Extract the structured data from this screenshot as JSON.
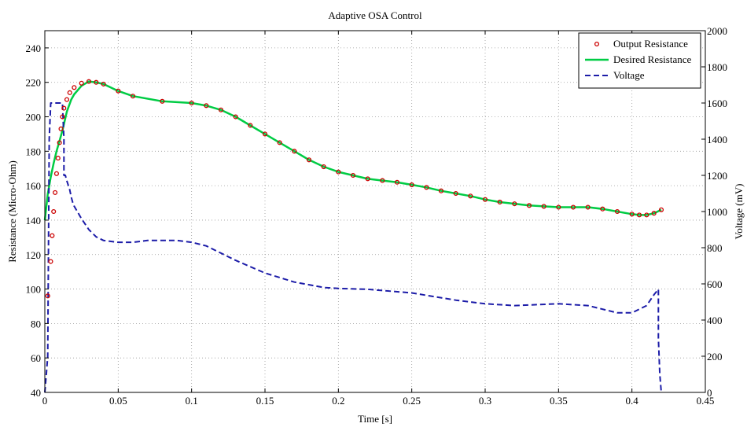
{
  "chart_data": {
    "type": "line",
    "title": "Adaptive OSA Control",
    "xlabel": "Time [s]",
    "ylabel": "Resistance (Micro-Ohm)",
    "y2label": "Voltage (mV)",
    "xlim": [
      0,
      0.45
    ],
    "ylim": [
      40,
      250
    ],
    "y2lim": [
      0,
      2000
    ],
    "xticks": [
      0,
      0.05,
      0.1,
      0.15,
      0.2,
      0.25,
      0.3,
      0.35,
      0.4,
      0.45
    ],
    "xtick_labels": [
      "0",
      "0.05",
      "0.1",
      "0.15",
      "0.2",
      "0.25",
      "0.3",
      "0.35",
      "0.4",
      "0.45"
    ],
    "yticks": [
      40,
      60,
      80,
      100,
      120,
      140,
      160,
      180,
      200,
      220,
      240
    ],
    "y2ticks": [
      0,
      200,
      400,
      600,
      800,
      1000,
      1200,
      1400,
      1600,
      1800,
      2000
    ],
    "grid": true,
    "legend_position": "top-right",
    "series": [
      {
        "name": "Output Resistance",
        "axis": "left",
        "style": "markers",
        "color": "#cc0000",
        "x": [
          0.002,
          0.004,
          0.005,
          0.006,
          0.007,
          0.008,
          0.009,
          0.01,
          0.011,
          0.012,
          0.013,
          0.015,
          0.017,
          0.02,
          0.025,
          0.03,
          0.035,
          0.04,
          0.05,
          0.06,
          0.08,
          0.1,
          0.11,
          0.12,
          0.13,
          0.14,
          0.15,
          0.16,
          0.17,
          0.18,
          0.19,
          0.2,
          0.21,
          0.22,
          0.23,
          0.24,
          0.25,
          0.26,
          0.27,
          0.28,
          0.29,
          0.3,
          0.31,
          0.32,
          0.33,
          0.34,
          0.35,
          0.36,
          0.37,
          0.38,
          0.39,
          0.4,
          0.405,
          0.41,
          0.415,
          0.42
        ],
        "y": [
          96,
          116,
          131,
          145,
          156,
          167,
          176,
          185,
          193,
          200,
          205,
          210,
          214,
          217,
          219.5,
          220.5,
          220,
          219,
          215,
          212,
          209,
          208,
          206.5,
          204,
          200,
          195,
          190,
          185,
          180,
          175,
          171,
          168,
          166,
          164,
          163,
          162,
          160.5,
          159,
          157,
          155.5,
          154,
          152,
          150.5,
          149.5,
          148.5,
          148,
          147.5,
          147.5,
          147.5,
          146.5,
          145,
          143.5,
          143,
          143,
          144,
          146
        ]
      },
      {
        "name": "Desired Resistance",
        "axis": "left",
        "style": "line",
        "color": "#00cc44",
        "x": [
          0,
          0.002,
          0.004,
          0.006,
          0.008,
          0.01,
          0.012,
          0.015,
          0.018,
          0.02,
          0.025,
          0.03,
          0.035,
          0.04,
          0.05,
          0.06,
          0.08,
          0.1,
          0.11,
          0.12,
          0.13,
          0.14,
          0.15,
          0.16,
          0.17,
          0.18,
          0.19,
          0.2,
          0.21,
          0.22,
          0.23,
          0.24,
          0.25,
          0.26,
          0.27,
          0.28,
          0.29,
          0.3,
          0.31,
          0.32,
          0.33,
          0.34,
          0.35,
          0.36,
          0.37,
          0.38,
          0.39,
          0.4,
          0.405,
          0.41,
          0.415,
          0.42
        ],
        "y": [
          140,
          155,
          165,
          173,
          180,
          186,
          192,
          203,
          210,
          213,
          218,
          220.5,
          220,
          219,
          215,
          212,
          209,
          208,
          206.5,
          204,
          200,
          195,
          190,
          185,
          180,
          175,
          171,
          168,
          166,
          164,
          163,
          162,
          160.5,
          159,
          157,
          155.5,
          154,
          152,
          150.5,
          149.5,
          148.5,
          148,
          147.5,
          147.5,
          147.5,
          146.5,
          145,
          143.5,
          143,
          143,
          144,
          146
        ]
      },
      {
        "name": "Voltage",
        "axis": "right",
        "style": "dashed",
        "color": "#1c1ca8",
        "x": [
          0,
          0.001,
          0.002,
          0.003,
          0.004,
          0.005,
          0.012,
          0.013,
          0.013,
          0.014,
          0.015,
          0.017,
          0.018,
          0.019,
          0.02,
          0.025,
          0.03,
          0.035,
          0.04,
          0.05,
          0.06,
          0.07,
          0.08,
          0.09,
          0.1,
          0.11,
          0.12,
          0.13,
          0.15,
          0.17,
          0.19,
          0.2,
          0.22,
          0.25,
          0.28,
          0.3,
          0.32,
          0.35,
          0.37,
          0.39,
          0.4,
          0.41,
          0.415,
          0.418,
          0.418,
          0.419,
          0.42
        ],
        "y": [
          0,
          100,
          200,
          1400,
          1600,
          1600,
          1600,
          1400,
          1200,
          1200,
          1170,
          1120,
          1080,
          1050,
          1030,
          960,
          900,
          860,
          840,
          830,
          830,
          840,
          840,
          840,
          830,
          810,
          770,
          730,
          660,
          610,
          580,
          575,
          570,
          550,
          510,
          490,
          480,
          490,
          480,
          440,
          440,
          480,
          540,
          570,
          300,
          100,
          0
        ]
      }
    ]
  }
}
